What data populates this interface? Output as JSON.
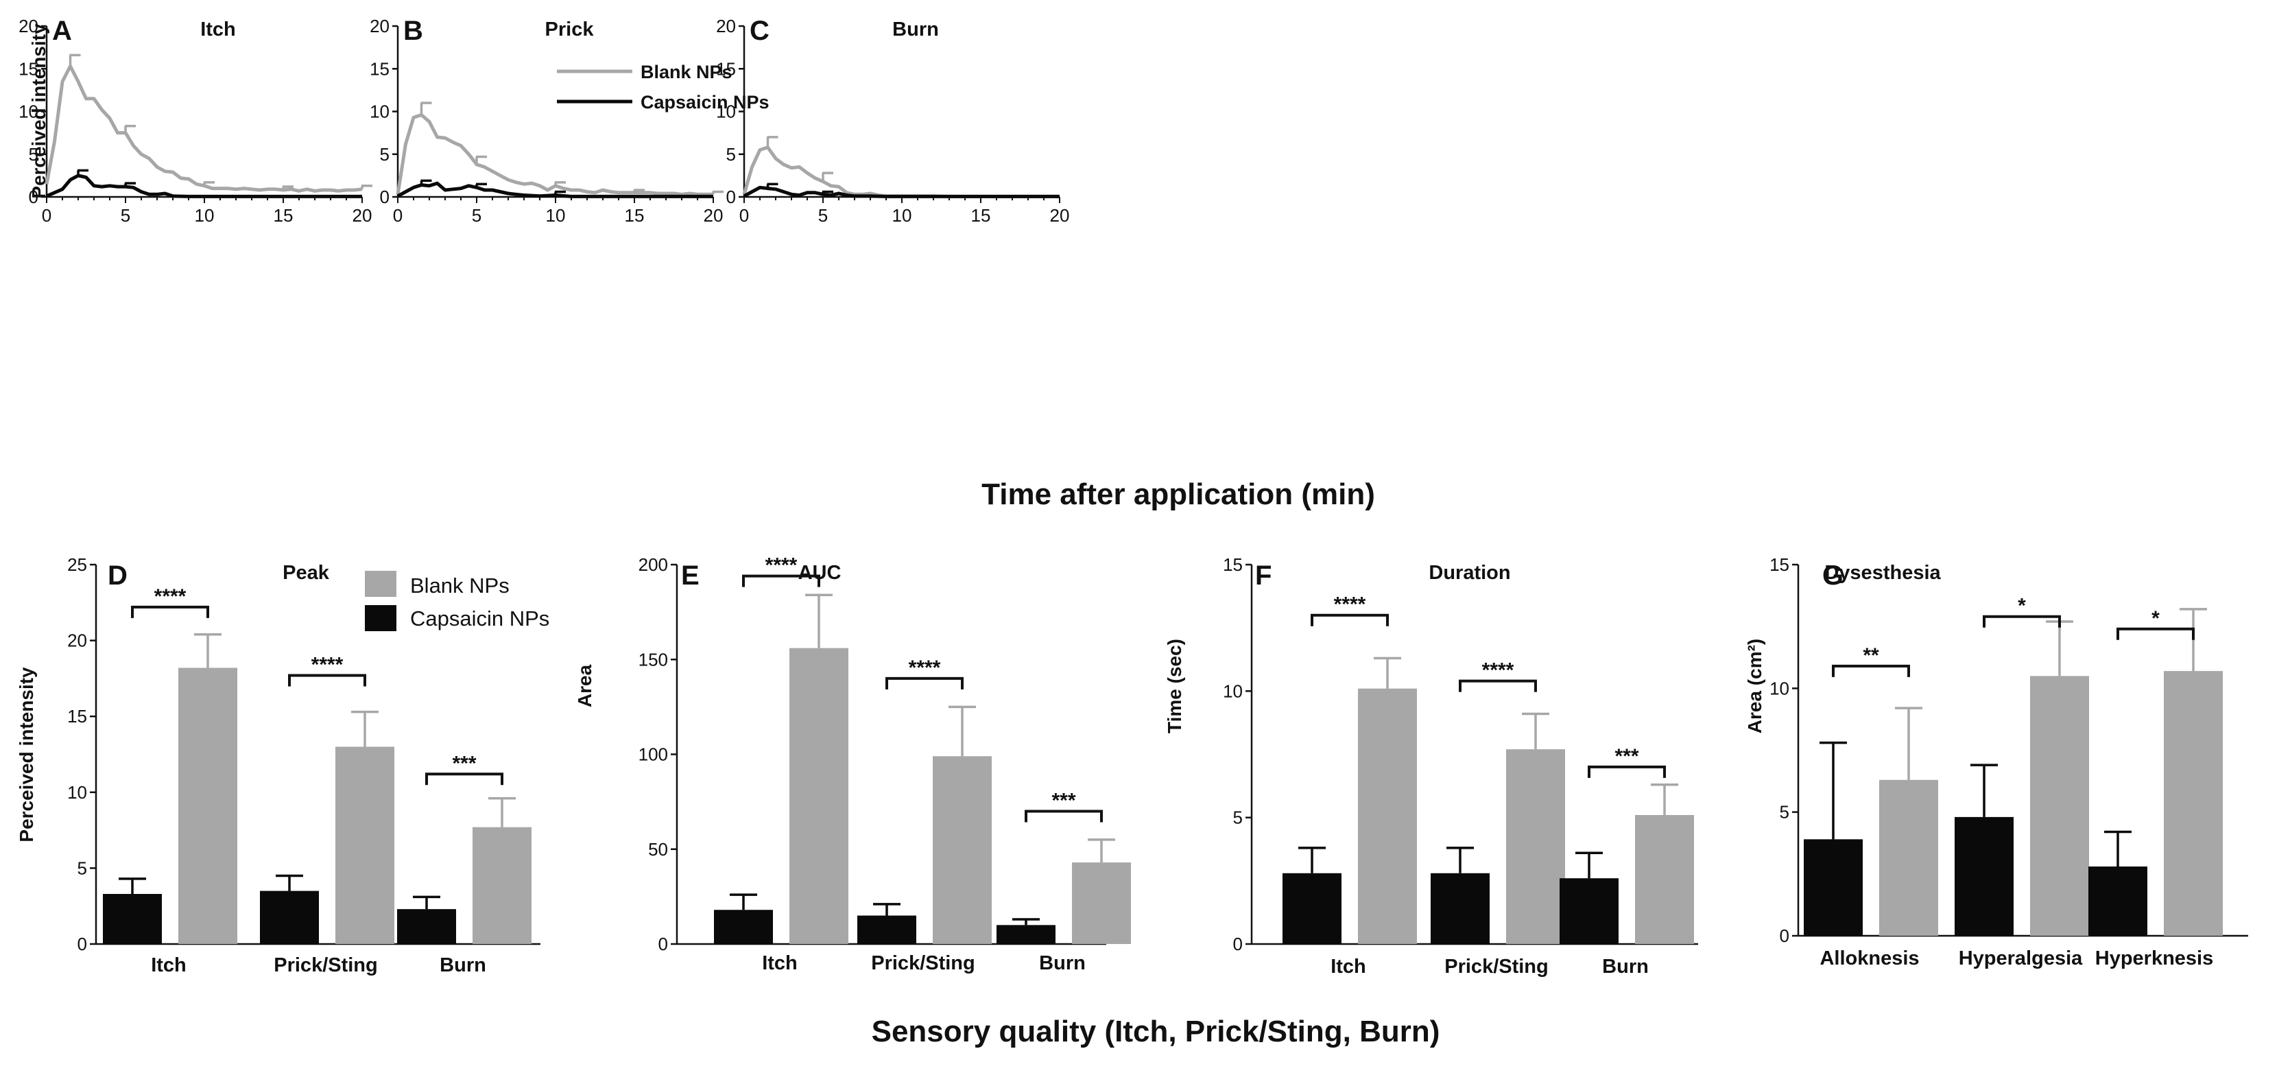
{
  "shared_labels": {
    "top_xlabel": "Time after application (min)",
    "bottom_xlabel": "Sensory quality (Itch, Prick/Sting, Burn)"
  },
  "colors": {
    "blank": "#a7a7a7",
    "capsaicin": "#0a0a0a",
    "axis": "#111111"
  },
  "chart_data": [
    {
      "id": "A",
      "type": "line",
      "letter": "A",
      "title": "Itch",
      "ylabel": "Perceived intensity",
      "xlabel": "",
      "xlim": [
        0,
        20
      ],
      "ylim": [
        0,
        20
      ],
      "xticks": [
        "0",
        "5",
        "10",
        "15",
        "20"
      ],
      "yticks": [
        "0",
        "5",
        "10",
        "15",
        "20"
      ],
      "legend": {
        "blank": "Blank NPs",
        "capsaicin": "Capsaicin NPs"
      },
      "series": [
        {
          "name": "Blank NPs",
          "color": "#a7a7a7",
          "x": [
            0,
            0.5,
            1,
            1.5,
            2,
            2.5,
            3,
            3.5,
            4,
            4.5,
            5,
            5.5,
            6,
            6.5,
            7,
            7.5,
            8,
            8.5,
            9,
            9.5,
            10,
            10.5,
            11,
            11.5,
            12,
            12.5,
            13,
            13.5,
            14,
            14.5,
            15,
            15.5,
            16,
            16.5,
            17,
            17.5,
            18,
            18.5,
            19,
            19.5,
            20
          ],
          "y": [
            1.5,
            6.5,
            13.5,
            15.3,
            13.5,
            11.5,
            11.5,
            10.2,
            9.2,
            7.5,
            7.5,
            6.0,
            5.0,
            4.5,
            3.5,
            3.0,
            2.9,
            2.2,
            2.1,
            1.5,
            1.3,
            1.0,
            1.0,
            1.0,
            0.9,
            1.0,
            0.9,
            0.8,
            0.9,
            0.9,
            0.8,
            0.9,
            0.7,
            0.9,
            0.7,
            0.8,
            0.8,
            0.7,
            0.8,
            0.8,
            0.9
          ],
          "error": [
            [
              1.5,
              1.3
            ],
            [
              5,
              0.8
            ],
            [
              10,
              0.4
            ],
            [
              15,
              0.4
            ],
            [
              20,
              0.4
            ]
          ]
        },
        {
          "name": "Capsaicin NPs",
          "color": "#0a0a0a",
          "x": [
            0,
            0.5,
            1,
            1.5,
            2,
            2.5,
            3,
            3.5,
            4,
            4.5,
            5,
            5.5,
            6,
            6.5,
            7,
            7.5,
            8,
            9,
            10,
            12,
            14,
            16,
            18,
            20
          ],
          "y": [
            0.1,
            0.5,
            0.9,
            2.0,
            2.5,
            2.3,
            1.3,
            1.2,
            1.3,
            1.2,
            1.2,
            1.1,
            0.6,
            0.3,
            0.3,
            0.4,
            0.1,
            0.05,
            0.05,
            0.05,
            0.05,
            0.05,
            0.05,
            0.05
          ],
          "error": [
            [
              2,
              0.6
            ],
            [
              5,
              0.4
            ]
          ]
        }
      ]
    },
    {
      "id": "B",
      "type": "line",
      "letter": "B",
      "title": "Prick",
      "xlim": [
        0,
        20
      ],
      "ylim": [
        0,
        20
      ],
      "xticks": [
        "0",
        "5",
        "10",
        "15",
        "20"
      ],
      "yticks": [
        "0",
        "5",
        "10",
        "15",
        "20"
      ],
      "series": [
        {
          "name": "Blank NPs",
          "color": "#a7a7a7",
          "x": [
            0,
            0.5,
            1,
            1.5,
            2,
            2.5,
            3,
            3.5,
            4,
            4.5,
            5,
            5.5,
            6,
            6.5,
            7,
            7.5,
            8,
            8.5,
            9,
            9.5,
            10,
            10.5,
            11,
            11.5,
            12,
            12.5,
            13,
            13.5,
            14,
            14.5,
            15,
            15.5,
            16,
            16.5,
            17,
            17.5,
            18,
            18.5,
            19,
            19.5,
            20
          ],
          "y": [
            0.3,
            6.2,
            9.3,
            9.6,
            8.8,
            7.0,
            6.9,
            6.4,
            6.0,
            5.0,
            3.8,
            3.5,
            3.0,
            2.5,
            2.0,
            1.7,
            1.5,
            1.6,
            1.3,
            0.8,
            1.3,
            1.0,
            0.8,
            0.8,
            0.6,
            0.5,
            0.8,
            0.6,
            0.5,
            0.5,
            0.5,
            0.5,
            0.5,
            0.4,
            0.4,
            0.4,
            0.3,
            0.4,
            0.3,
            0.3,
            0.3
          ],
          "error": [
            [
              1.5,
              1.4
            ],
            [
              5,
              0.9
            ],
            [
              10,
              0.4
            ],
            [
              15,
              0.3
            ],
            [
              20,
              0.3
            ]
          ]
        },
        {
          "name": "Capsaicin NPs",
          "color": "#0a0a0a",
          "x": [
            0,
            0.5,
            1,
            1.5,
            2,
            2.5,
            3,
            3.5,
            4,
            4.5,
            5,
            5.5,
            6,
            6.5,
            7,
            7.5,
            8,
            9,
            10,
            11,
            12,
            14,
            16,
            18,
            20
          ],
          "y": [
            0.1,
            0.6,
            1.1,
            1.4,
            1.3,
            1.6,
            0.8,
            0.9,
            1.0,
            1.3,
            1.1,
            0.8,
            0.8,
            0.6,
            0.4,
            0.3,
            0.2,
            0.1,
            0.2,
            0.05,
            0.05,
            0.05,
            0.05,
            0.05,
            0.05
          ],
          "error": [
            [
              1.5,
              0.5
            ],
            [
              5,
              0.4
            ],
            [
              10,
              0.4
            ]
          ]
        }
      ]
    },
    {
      "id": "C",
      "type": "line",
      "letter": "C",
      "title": "Burn",
      "xlim": [
        0,
        20
      ],
      "ylim": [
        0,
        20
      ],
      "xticks": [
        "0",
        "5",
        "10",
        "15",
        "20"
      ],
      "yticks": [
        "0",
        "5",
        "10",
        "15",
        "20"
      ],
      "series": [
        {
          "name": "Blank NPs",
          "color": "#a7a7a7",
          "x": [
            0,
            0.5,
            1,
            1.5,
            2,
            2.5,
            3,
            3.5,
            4,
            4.5,
            5,
            5.5,
            6,
            6.5,
            7,
            7.5,
            8,
            8.5,
            9,
            10,
            11,
            12,
            13,
            14,
            15,
            16,
            17,
            18,
            19,
            20
          ],
          "y": [
            0.3,
            3.5,
            5.5,
            5.8,
            4.5,
            3.8,
            3.4,
            3.5,
            2.8,
            2.2,
            1.8,
            1.3,
            1.2,
            0.5,
            0.3,
            0.3,
            0.4,
            0.2,
            0.1,
            0.1,
            0.1,
            0.1,
            0.05,
            0.05,
            0.05,
            0.05,
            0.05,
            0.05,
            0.05,
            0.05
          ],
          "error": [
            [
              1.5,
              1.2
            ],
            [
              5,
              1.0
            ]
          ]
        },
        {
          "name": "Capsaicin NPs",
          "color": "#0a0a0a",
          "x": [
            0,
            0.5,
            1,
            1.5,
            2,
            2.5,
            3,
            3.5,
            4,
            4.5,
            5,
            5.5,
            6,
            6.5,
            7,
            7.5,
            8,
            9,
            10,
            12,
            14,
            16,
            18,
            20
          ],
          "y": [
            0.1,
            0.6,
            1.1,
            1.0,
            0.9,
            0.6,
            0.3,
            0.2,
            0.5,
            0.5,
            0.3,
            0.2,
            0.4,
            0.2,
            0.1,
            0.1,
            0.1,
            0.05,
            0.05,
            0.05,
            0.05,
            0.05,
            0.05,
            0.05
          ],
          "error": [
            [
              1.5,
              0.5
            ],
            [
              5,
              0.3
            ]
          ]
        }
      ]
    },
    {
      "id": "D",
      "type": "bar",
      "letter": "D",
      "title": "Peak",
      "ylabel": "Perceived intensity",
      "categories": [
        "Itch",
        "Prick/Sting",
        "Burn"
      ],
      "ylim": [
        0,
        25
      ],
      "yticks": [
        "0",
        "5",
        "10",
        "15",
        "20",
        "25"
      ],
      "legend": {
        "blank": "Blank  NPs",
        "capsaicin": "Capsaicin NPs"
      },
      "series": [
        {
          "name": "Capsaicin NPs",
          "color": "#0a0a0a",
          "values": [
            3.3,
            3.5,
            2.3
          ],
          "errors": [
            1.0,
            1.0,
            0.8
          ]
        },
        {
          "name": "Blank NPs",
          "color": "#a7a7a7",
          "values": [
            18.2,
            13.0,
            7.7
          ],
          "errors": [
            2.2,
            2.3,
            1.9
          ]
        }
      ],
      "significance": [
        "****",
        "****",
        "***"
      ],
      "bracket_levels": [
        22.2,
        17.7,
        11.2
      ]
    },
    {
      "id": "E",
      "type": "bar",
      "letter": "E",
      "title": "AUC",
      "ylabel": "Area",
      "categories": [
        "Itch",
        "Prick/Sting",
        "Burn"
      ],
      "ylim": [
        0,
        200
      ],
      "yticks": [
        "0",
        "50",
        "100",
        "150",
        "200"
      ],
      "series": [
        {
          "name": "Capsaicin NPs",
          "color": "#0a0a0a",
          "values": [
            18,
            15,
            10
          ],
          "errors": [
            8,
            6,
            3
          ]
        },
        {
          "name": "Blank NPs",
          "color": "#a7a7a7",
          "values": [
            156,
            99,
            43
          ],
          "errors": [
            28,
            26,
            12
          ]
        }
      ],
      "significance": [
        "****",
        "****",
        "***"
      ],
      "bracket_levels": [
        194,
        140,
        70
      ]
    },
    {
      "id": "F",
      "type": "bar",
      "letter": "F",
      "title": "Duration",
      "ylabel": "Time (sec)",
      "categories": [
        "Itch",
        "Prick/Sting",
        "Burn"
      ],
      "ylim": [
        0,
        15
      ],
      "yticks": [
        "0",
        "5",
        "10",
        "15"
      ],
      "series": [
        {
          "name": "Capsaicin NPs",
          "color": "#0a0a0a",
          "values": [
            2.8,
            2.8,
            2.6
          ],
          "errors": [
            1.0,
            1.0,
            1.0
          ]
        },
        {
          "name": "Blank NPs",
          "color": "#a7a7a7",
          "values": [
            10.1,
            7.7,
            5.1
          ],
          "errors": [
            1.2,
            1.4,
            1.2
          ]
        }
      ],
      "significance": [
        "****",
        "****",
        "***"
      ],
      "bracket_levels": [
        13.0,
        10.4,
        7.0
      ]
    },
    {
      "id": "G",
      "type": "bar",
      "letter": "G",
      "title": "Dysesthesia",
      "ylabel": "Area (cm²)",
      "categories": [
        "Alloknesis",
        "Hyperalgesia",
        "Hyperknesis"
      ],
      "ylim": [
        0,
        15
      ],
      "yticks": [
        "0",
        "5",
        "10",
        "15"
      ],
      "series": [
        {
          "name": "Capsaicin NPs",
          "color": "#0a0a0a",
          "values": [
            3.9,
            4.8,
            2.8
          ],
          "errors": [
            3.9,
            2.1,
            1.4
          ]
        },
        {
          "name": "Blank NPs",
          "color": "#a7a7a7",
          "values": [
            6.3,
            10.5,
            10.7
          ],
          "errors": [
            2.9,
            2.2,
            2.5
          ]
        }
      ],
      "significance": [
        "**",
        "*",
        "*"
      ],
      "bracket_levels": [
        10.9,
        12.9,
        12.4
      ]
    }
  ]
}
